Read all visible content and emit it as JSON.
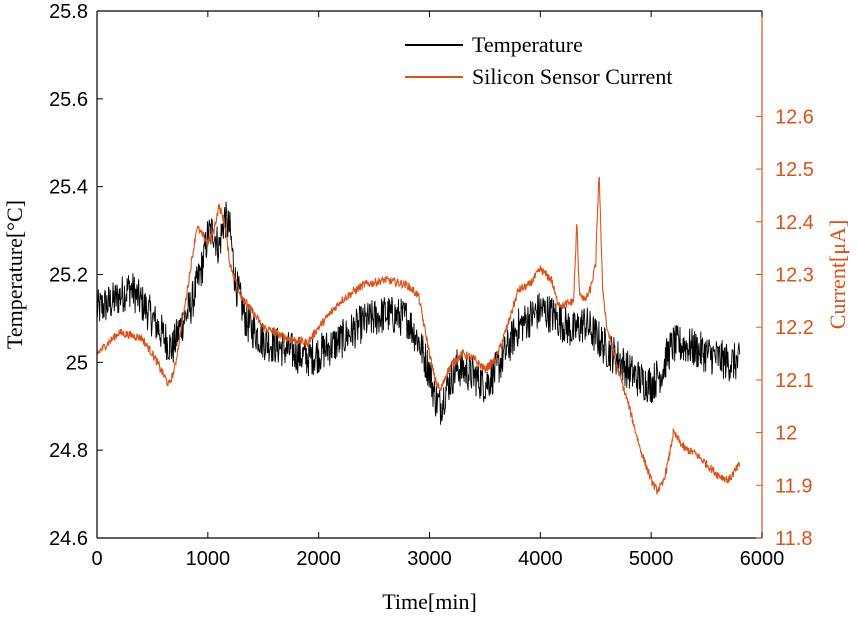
{
  "chart_data": {
    "type": "line",
    "xlabel": "Time[min]",
    "ylabel_left": "Temperature[°C]",
    "ylabel_right": "Current[μA]",
    "xlim": [
      0,
      6000
    ],
    "ylim_left": [
      24.6,
      25.8
    ],
    "ylim_right": [
      11.8,
      12.8
    ],
    "x_ticks": [
      "0",
      "1000",
      "2000",
      "3000",
      "4000",
      "5000",
      "6000"
    ],
    "y_ticks_left": [
      "24.6",
      "24.8",
      "25",
      "25.2",
      "25.4",
      "25.6",
      "25.8"
    ],
    "y_ticks_right": [
      "11.8",
      "11.9",
      "12",
      "12.1",
      "12.2",
      "12.3",
      "12.4",
      "12.5",
      "12.6"
    ],
    "grid": false,
    "legend_position": "top-right",
    "colors": {
      "temperature": "#000000",
      "current": "#d95319"
    },
    "series": [
      {
        "name": "Temperature",
        "axis": "left",
        "x": [
          0,
          150,
          300,
          450,
          600,
          680,
          750,
          850,
          950,
          1000,
          1050,
          1100,
          1150,
          1200,
          1250,
          1350,
          1500,
          1700,
          1900,
          2000,
          2200,
          2400,
          2600,
          2800,
          2900,
          3000,
          3050,
          3100,
          3150,
          3250,
          3400,
          3500,
          3600,
          3700,
          3800,
          3900,
          4000,
          4100,
          4200,
          4300,
          4400,
          4500,
          4600,
          4700,
          4800,
          4900,
          5000,
          5100,
          5150,
          5200,
          5300,
          5400,
          5500,
          5600,
          5700,
          5800
        ],
        "y": [
          25.12,
          25.14,
          25.17,
          25.12,
          25.06,
          25.03,
          25.08,
          25.13,
          25.22,
          25.29,
          25.3,
          25.26,
          25.33,
          25.3,
          25.18,
          25.09,
          25.05,
          25.03,
          25.01,
          25.02,
          25.05,
          25.09,
          25.11,
          25.1,
          25.05,
          24.98,
          24.92,
          24.9,
          24.94,
          24.99,
          24.97,
          24.95,
          24.98,
          25.03,
          25.08,
          25.1,
          25.12,
          25.11,
          25.09,
          25.07,
          25.09,
          25.06,
          25.03,
          25.01,
          24.98,
          24.96,
          24.95,
          24.98,
          25.02,
          25.04,
          25.04,
          25.03,
          25.02,
          25.01,
          25.0,
          25.0
        ],
        "noise": 0.045
      },
      {
        "name": "Silicon Sensor Current",
        "axis": "right",
        "x": [
          0,
          200,
          400,
          500,
          600,
          650,
          700,
          800,
          900,
          1000,
          1050,
          1100,
          1150,
          1200,
          1300,
          1500,
          1700,
          1900,
          2000,
          2200,
          2400,
          2600,
          2800,
          2900,
          3000,
          3050,
          3100,
          3150,
          3200,
          3300,
          3400,
          3500,
          3600,
          3700,
          3800,
          3900,
          4000,
          4100,
          4150,
          4200,
          4300,
          4330,
          4350,
          4400,
          4450,
          4500,
          4530,
          4560,
          4600,
          4700,
          4800,
          4900,
          5000,
          5050,
          5100,
          5150,
          5200,
          5300,
          5400,
          5500,
          5600,
          5700,
          5800
        ],
        "y": [
          12.15,
          12.19,
          12.18,
          12.15,
          12.11,
          12.09,
          12.12,
          12.25,
          12.39,
          12.36,
          12.38,
          12.43,
          12.4,
          12.32,
          12.26,
          12.2,
          12.18,
          12.17,
          12.2,
          12.25,
          12.28,
          12.29,
          12.28,
          12.26,
          12.15,
          12.1,
          12.08,
          12.11,
          12.13,
          12.15,
          12.14,
          12.12,
          12.14,
          12.2,
          12.27,
          12.28,
          12.31,
          12.29,
          12.25,
          12.24,
          12.25,
          12.4,
          12.27,
          12.25,
          12.27,
          12.32,
          12.5,
          12.28,
          12.2,
          12.12,
          12.05,
          11.97,
          11.91,
          11.89,
          11.9,
          11.94,
          12.0,
          11.97,
          11.96,
          11.94,
          11.92,
          11.91,
          11.94
        ],
        "noise": 0.008
      }
    ]
  }
}
